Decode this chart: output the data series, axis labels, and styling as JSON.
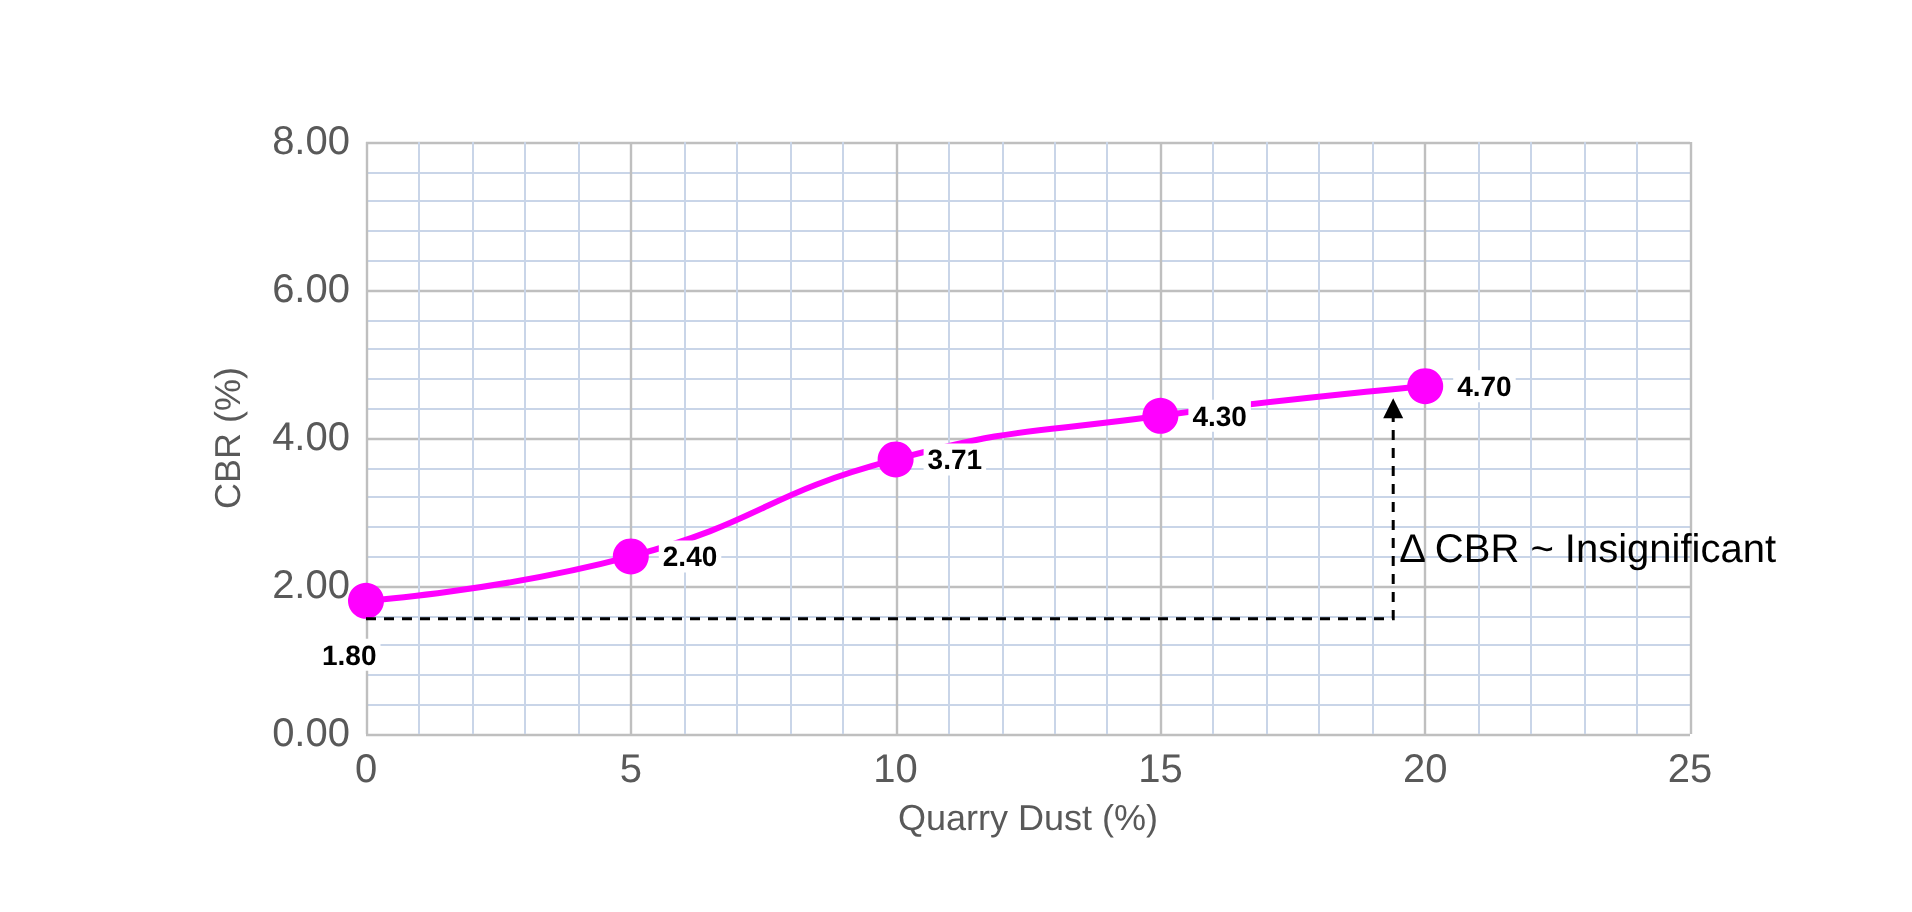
{
  "chart_data": {
    "type": "line",
    "xlabel": "Quarry Dust (%)",
    "ylabel": "CBR (%)",
    "x": [
      0,
      5,
      10,
      15,
      20
    ],
    "series": [
      {
        "color": "#ff00ff",
        "values": [
          1.8,
          2.4,
          3.71,
          4.3,
          4.7
        ],
        "value_labels": [
          "1.80",
          "2.40",
          "3.71",
          "4.30",
          "4.70"
        ]
      }
    ],
    "xlim": [
      0,
      25
    ],
    "xticks": [
      0,
      5,
      10,
      15,
      20,
      25
    ],
    "ylim": [
      0,
      8
    ],
    "yticks": [
      {
        "value": 0,
        "label": "0.00"
      },
      {
        "value": 2,
        "label": "2.00"
      },
      {
        "value": 4,
        "label": "4.00"
      },
      {
        "value": 6,
        "label": "6.00"
      },
      {
        "value": 8,
        "label": "8.00"
      }
    ],
    "grid": true,
    "marker": "circle",
    "line_style": "solid",
    "annotations": [
      "Δ CBR ~ Insignificant"
    ]
  }
}
